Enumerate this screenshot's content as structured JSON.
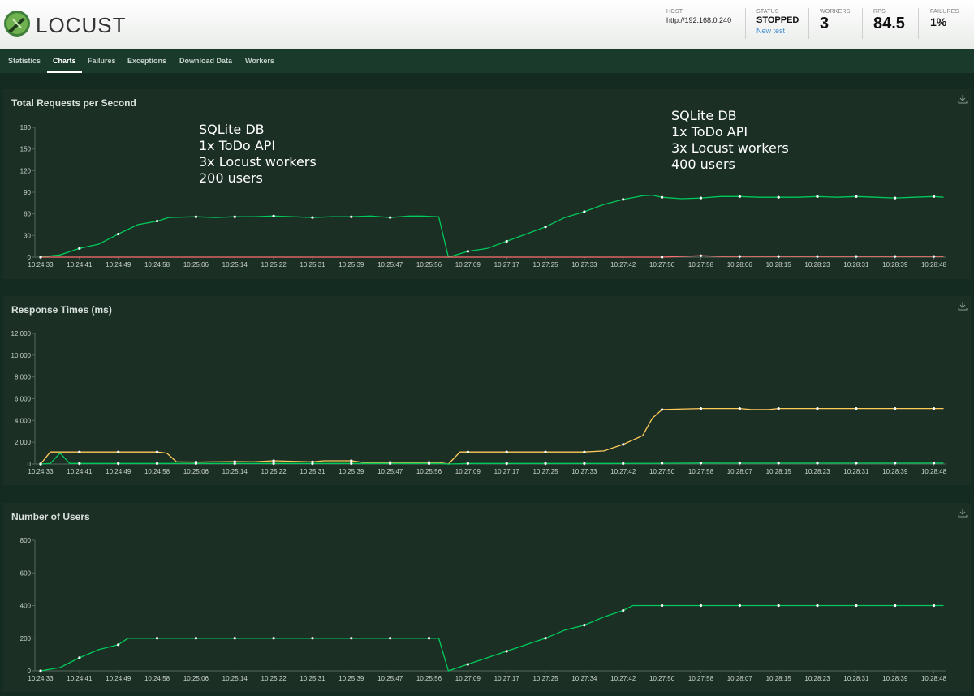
{
  "app": {
    "name": "LOCUST"
  },
  "header": {
    "host_label": "HOST",
    "host_value": "http://192.168.0.240",
    "status_label": "STATUS",
    "status_value": "STOPPED",
    "new_test_label": "New test",
    "workers_label": "WORKERS",
    "workers_value": "3",
    "rps_label": "RPS",
    "rps_value": "84.5",
    "failures_label": "FAILURES",
    "failures_value": "1%"
  },
  "nav": {
    "tabs": [
      {
        "label": "Statistics"
      },
      {
        "label": "Charts",
        "active": true
      },
      {
        "label": "Failures"
      },
      {
        "label": "Exceptions"
      },
      {
        "label": "Download Data"
      },
      {
        "label": "Workers"
      }
    ]
  },
  "colors": {
    "rps": "#00ca5a",
    "failures": "#ff6d6d",
    "p50": "#00ca5a",
    "p95": "#ffca5a",
    "users": "#00ca5a"
  },
  "annotations": [
    {
      "lines": [
        "SQLite DB",
        "1x ToDo API",
        "3x Locust workers",
        "200 users"
      ]
    },
    {
      "lines": [
        "SQLite DB",
        "1x ToDo API",
        "3x Locust workers",
        "400 users"
      ]
    }
  ],
  "chart_data": [
    {
      "type": "line",
      "title": "Total Requests per Second",
      "x_tick_labels": [
        "10:24:33",
        "10:24:41",
        "10:24:49",
        "10:24:58",
        "10:25:06",
        "10:25:14",
        "10:25:22",
        "10:25:31",
        "10:25:39",
        "10:25:47",
        "10:25:56",
        "10:27:09",
        "10:27:17",
        "10:27:25",
        "10:27:33",
        "10:27:42",
        "10:27:50",
        "10:27:58",
        "10:28:06",
        "10:28:15",
        "10:28:23",
        "10:28:31",
        "10:28:39",
        "10:28:48"
      ],
      "y_tick_labels": [
        "0",
        "30",
        "60",
        "90",
        "120",
        "150",
        "180"
      ],
      "ylim": [
        0,
        180
      ],
      "series": [
        {
          "color_key": "rps",
          "points": [
            [
              0,
              0
            ],
            [
              0.3,
              2
            ],
            [
              0.5,
              3
            ],
            [
              1,
              12
            ],
            [
              1.5,
              18
            ],
            [
              2,
              32
            ],
            [
              2.5,
              45
            ],
            [
              3,
              50
            ],
            [
              3.3,
              55
            ],
            [
              4,
              56
            ],
            [
              4.5,
              55
            ],
            [
              5,
              56
            ],
            [
              5.5,
              56
            ],
            [
              6,
              57
            ],
            [
              6.5,
              56
            ],
            [
              7,
              55
            ],
            [
              7.5,
              56
            ],
            [
              8,
              56
            ],
            [
              8.5,
              57
            ],
            [
              9,
              55
            ],
            [
              9.5,
              57
            ],
            [
              9.8,
              57
            ],
            [
              10.25,
              56
            ],
            [
              10.5,
              0
            ],
            [
              11,
              8
            ],
            [
              11.5,
              12
            ],
            [
              12,
              22
            ],
            [
              12.5,
              32
            ],
            [
              13,
              42
            ],
            [
              13.5,
              55
            ],
            [
              14,
              63
            ],
            [
              14.5,
              73
            ],
            [
              15,
              80
            ],
            [
              15.5,
              85
            ],
            [
              15.75,
              86
            ],
            [
              16,
              83
            ],
            [
              16.5,
              81
            ],
            [
              17,
              82
            ],
            [
              17.5,
              84
            ],
            [
              18,
              84
            ],
            [
              18.5,
              83
            ],
            [
              19,
              83
            ],
            [
              19.5,
              83
            ],
            [
              20,
              84
            ],
            [
              20.5,
              83
            ],
            [
              21,
              84
            ],
            [
              21.5,
              83
            ],
            [
              22,
              82
            ],
            [
              22.5,
              83
            ],
            [
              23,
              84
            ],
            [
              23.25,
              83
            ]
          ]
        },
        {
          "color_key": "failures",
          "points": [
            [
              0,
              0
            ],
            [
              16,
              0
            ],
            [
              16.5,
              1
            ],
            [
              17,
              2
            ],
            [
              17.5,
              1
            ],
            [
              18,
              1
            ],
            [
              19,
              1
            ],
            [
              20,
              1
            ],
            [
              21,
              1
            ],
            [
              22,
              1
            ],
            [
              23,
              1
            ],
            [
              23.25,
              1
            ]
          ]
        }
      ]
    },
    {
      "type": "line",
      "title": "Response Times (ms)",
      "x_tick_labels": [
        "10:24:33",
        "10:24:41",
        "10:24:49",
        "10:24:58",
        "10:25:06",
        "10:25:14",
        "10:25:22",
        "10:25:31",
        "10:25:39",
        "10:25:47",
        "10:25:56",
        "10:27:09",
        "10:27:17",
        "10:27:25",
        "10:27:33",
        "10:27:42",
        "10:27:50",
        "10:27:58",
        "10:28:07",
        "10:28:15",
        "10:28:23",
        "10:28:31",
        "10:28:39",
        "10:28:48"
      ],
      "y_tick_labels": [
        "0",
        "2,000",
        "4,000",
        "6,000",
        "8,000",
        "10,000",
        "12,000"
      ],
      "ylim": [
        0,
        12000
      ],
      "series": [
        {
          "color_key": "p95",
          "points": [
            [
              0,
              0
            ],
            [
              0.25,
              1100
            ],
            [
              1,
              1100
            ],
            [
              2,
              1100
            ],
            [
              3,
              1100
            ],
            [
              3.25,
              1000
            ],
            [
              3.5,
              200
            ],
            [
              4,
              180
            ],
            [
              5,
              220
            ],
            [
              5.5,
              200
            ],
            [
              6,
              300
            ],
            [
              7,
              200
            ],
            [
              7.3,
              300
            ],
            [
              8,
              300
            ],
            [
              8.3,
              150
            ],
            [
              9,
              150
            ],
            [
              10,
              150
            ],
            [
              10.25,
              150
            ],
            [
              10.5,
              0
            ],
            [
              10.8,
              1100
            ],
            [
              11,
              1100
            ],
            [
              12,
              1100
            ],
            [
              13,
              1100
            ],
            [
              14,
              1100
            ],
            [
              14.5,
              1200
            ],
            [
              15,
              1800
            ],
            [
              15.5,
              2600
            ],
            [
              15.75,
              4200
            ],
            [
              16,
              5000
            ],
            [
              17,
              5100
            ],
            [
              18,
              5100
            ],
            [
              18.3,
              5000
            ],
            [
              18.75,
              5000
            ],
            [
              19,
              5100
            ],
            [
              20,
              5100
            ],
            [
              21,
              5100
            ],
            [
              22,
              5100
            ],
            [
              23,
              5100
            ],
            [
              23.25,
              5100
            ]
          ]
        },
        {
          "color_key": "p50",
          "points": [
            [
              0,
              0
            ],
            [
              0.25,
              50
            ],
            [
              0.5,
              1000
            ],
            [
              0.75,
              50
            ],
            [
              1,
              50
            ],
            [
              2,
              50
            ],
            [
              3,
              50
            ],
            [
              4,
              50
            ],
            [
              5,
              50
            ],
            [
              6,
              50
            ],
            [
              7,
              50
            ],
            [
              8,
              50
            ],
            [
              9,
              50
            ],
            [
              10,
              50
            ],
            [
              10.25,
              50
            ],
            [
              10.5,
              0
            ],
            [
              11,
              50
            ],
            [
              12,
              50
            ],
            [
              13,
              50
            ],
            [
              14,
              50
            ],
            [
              15,
              50
            ],
            [
              16,
              70
            ],
            [
              17,
              90
            ],
            [
              18,
              80
            ],
            [
              19,
              80
            ],
            [
              20,
              80
            ],
            [
              21,
              80
            ],
            [
              22,
              80
            ],
            [
              23,
              80
            ],
            [
              23.25,
              80
            ]
          ]
        }
      ]
    },
    {
      "type": "line",
      "title": "Number of Users",
      "x_tick_labels": [
        "10:24:33",
        "10:24:41",
        "10:24:49",
        "10:24:58",
        "10:25:06",
        "10:25:14",
        "10:25:22",
        "10:25:31",
        "10:25:39",
        "10:25:47",
        "10:25:56",
        "10:27:09",
        "10:27:17",
        "10:27:25",
        "10:27:34",
        "10:27:42",
        "10:27:50",
        "10:27:58",
        "10:28:07",
        "10:28:15",
        "10:28:23",
        "10:28:31",
        "10:28:39",
        "10:28:48"
      ],
      "y_tick_labels": [
        "0",
        "200",
        "400",
        "600",
        "800"
      ],
      "ylim": [
        0,
        800
      ],
      "series": [
        {
          "color_key": "users",
          "points": [
            [
              0,
              0
            ],
            [
              0.5,
              20
            ],
            [
              1,
              80
            ],
            [
              1.5,
              130
            ],
            [
              2,
              160
            ],
            [
              2.25,
              200
            ],
            [
              3,
              200
            ],
            [
              4,
              200
            ],
            [
              5,
              200
            ],
            [
              6,
              200
            ],
            [
              7,
              200
            ],
            [
              8,
              200
            ],
            [
              9,
              200
            ],
            [
              10,
              200
            ],
            [
              10.25,
              200
            ],
            [
              10.5,
              0
            ],
            [
              11,
              40
            ],
            [
              11.5,
              80
            ],
            [
              12,
              120
            ],
            [
              12.5,
              160
            ],
            [
              13,
              200
            ],
            [
              13.5,
              250
            ],
            [
              14,
              280
            ],
            [
              14.5,
              330
            ],
            [
              15,
              370
            ],
            [
              15.25,
              400
            ],
            [
              16,
              400
            ],
            [
              17,
              400
            ],
            [
              18,
              400
            ],
            [
              19,
              400
            ],
            [
              20,
              400
            ],
            [
              21,
              400
            ],
            [
              22,
              400
            ],
            [
              23,
              400
            ],
            [
              23.25,
              400
            ]
          ]
        }
      ]
    }
  ]
}
